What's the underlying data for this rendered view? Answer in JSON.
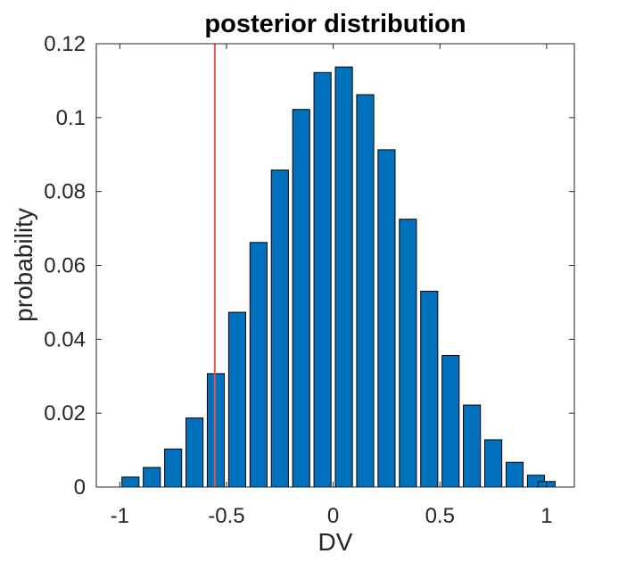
{
  "chart_data": {
    "type": "bar",
    "title": "posterior distribution",
    "xlabel": "DV",
    "ylabel": "probability",
    "x": [
      -0.95,
      -0.85,
      -0.75,
      -0.65,
      -0.55,
      -0.45,
      -0.35,
      -0.25,
      -0.15,
      -0.05,
      0.05,
      0.15,
      0.25,
      0.35,
      0.45,
      0.55,
      0.65,
      0.75,
      0.85,
      0.95,
      1.0
    ],
    "values": [
      0.0027,
      0.0053,
      0.0103,
      0.0187,
      0.0307,
      0.0473,
      0.0662,
      0.0858,
      0.1022,
      0.1122,
      0.1137,
      0.1062,
      0.0913,
      0.0725,
      0.053,
      0.0356,
      0.0222,
      0.0128,
      0.0067,
      0.0032,
      0.0015
    ],
    "xlim": [
      -1.11,
      1.13
    ],
    "ylim": [
      0,
      0.12
    ],
    "xticks": [
      -1,
      -0.5,
      0,
      0.5,
      1
    ],
    "xtick_labels": [
      "-1",
      "-0.5",
      "0",
      "0.5",
      "1"
    ],
    "yticks": [
      0,
      0.02,
      0.04,
      0.06,
      0.08,
      0.1,
      0.12
    ],
    "ytick_labels": [
      "0",
      "0.02",
      "0.04",
      "0.06",
      "0.08",
      "0.1",
      "0.12"
    ],
    "reference_line": {
      "orientation": "vertical",
      "x": -0.555
    },
    "grid": false,
    "box": true
  },
  "colors": {
    "bar_fill": "#0072BD",
    "bar_edge": "#000000",
    "reference_line": "#E8524A",
    "axis": "#262626",
    "title": "#000000"
  }
}
